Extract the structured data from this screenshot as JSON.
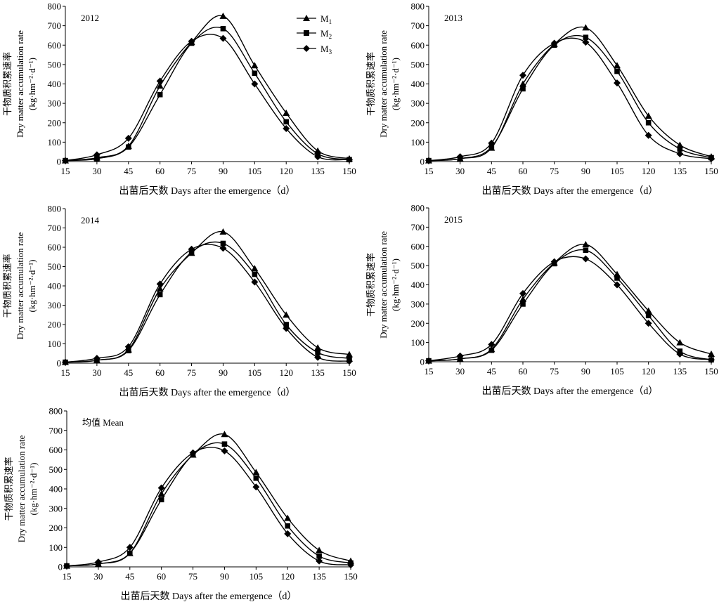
{
  "figure": {
    "xlabel": "出苗后天数 Days after the emergence（d）",
    "ylabel_cn": "干物质积累速率",
    "ylabel_en": "Dry matter accumulation rate",
    "ylabel_unit": "(kg·hm⁻²·d⁻¹)"
  },
  "legend": {
    "entries": [
      {
        "label": "M",
        "sub": "1",
        "marker": "triangle"
      },
      {
        "label": "M",
        "sub": "2",
        "marker": "square"
      },
      {
        "label": "M",
        "sub": "3",
        "marker": "diamond"
      }
    ]
  },
  "chart_data": [
    {
      "type": "line",
      "title": "2012",
      "x": [
        15,
        30,
        45,
        60,
        75,
        90,
        105,
        120,
        135,
        150
      ],
      "xticks": [
        15,
        30,
        45,
        60,
        75,
        90,
        105,
        120,
        135,
        150
      ],
      "ylim": [
        0,
        800
      ],
      "yticks": [
        0,
        100,
        200,
        300,
        400,
        500,
        600,
        700,
        800
      ],
      "series": [
        {
          "name": "M1",
          "marker": "triangle",
          "values": [
            5,
            20,
            80,
            390,
            615,
            750,
            495,
            250,
            55,
            15
          ]
        },
        {
          "name": "M2",
          "marker": "square",
          "values": [
            5,
            15,
            75,
            345,
            610,
            685,
            455,
            205,
            40,
            10
          ]
        },
        {
          "name": "M3",
          "marker": "diamond",
          "values": [
            5,
            35,
            120,
            415,
            620,
            635,
            400,
            170,
            25,
            10
          ]
        }
      ]
    },
    {
      "type": "line",
      "title": "2013",
      "x": [
        15,
        30,
        45,
        60,
        75,
        90,
        105,
        120,
        135,
        150
      ],
      "xticks": [
        15,
        30,
        45,
        60,
        75,
        90,
        105,
        120,
        135,
        150
      ],
      "ylim": [
        0,
        800
      ],
      "yticks": [
        0,
        100,
        200,
        300,
        400,
        500,
        600,
        700,
        800
      ],
      "series": [
        {
          "name": "M1",
          "marker": "triangle",
          "values": [
            5,
            15,
            70,
            400,
            605,
            690,
            495,
            235,
            85,
            25
          ]
        },
        {
          "name": "M2",
          "marker": "square",
          "values": [
            5,
            15,
            75,
            375,
            600,
            640,
            465,
            200,
            65,
            20
          ]
        },
        {
          "name": "M3",
          "marker": "diamond",
          "values": [
            5,
            25,
            95,
            445,
            610,
            615,
            405,
            135,
            40,
            15
          ]
        }
      ]
    },
    {
      "type": "line",
      "title": "2014",
      "x": [
        15,
        30,
        45,
        60,
        75,
        90,
        105,
        120,
        135,
        150
      ],
      "xticks": [
        15,
        30,
        45,
        60,
        75,
        90,
        105,
        120,
        135,
        150
      ],
      "ylim": [
        0,
        800
      ],
      "yticks": [
        0,
        100,
        200,
        300,
        400,
        500,
        600,
        700,
        800
      ],
      "series": [
        {
          "name": "M1",
          "marker": "triangle",
          "values": [
            5,
            15,
            70,
            385,
            570,
            680,
            490,
            250,
            80,
            45
          ]
        },
        {
          "name": "M2",
          "marker": "square",
          "values": [
            5,
            15,
            65,
            355,
            575,
            620,
            460,
            200,
            55,
            25
          ]
        },
        {
          "name": "M3",
          "marker": "diamond",
          "values": [
            5,
            25,
            85,
            410,
            590,
            595,
            420,
            180,
            30,
            10
          ]
        }
      ]
    },
    {
      "type": "line",
      "title": "2015",
      "x": [
        15,
        30,
        45,
        60,
        75,
        90,
        105,
        120,
        135,
        150
      ],
      "xticks": [
        15,
        30,
        45,
        60,
        75,
        90,
        105,
        120,
        135,
        150
      ],
      "ylim": [
        0,
        800
      ],
      "yticks": [
        0,
        100,
        200,
        300,
        400,
        500,
        600,
        700,
        800
      ],
      "series": [
        {
          "name": "M1",
          "marker": "triangle",
          "values": [
            5,
            15,
            65,
            325,
            515,
            610,
            455,
            265,
            100,
            40
          ]
        },
        {
          "name": "M2",
          "marker": "square",
          "values": [
            5,
            15,
            60,
            300,
            510,
            580,
            435,
            240,
            55,
            10
          ]
        },
        {
          "name": "M3",
          "marker": "diamond",
          "values": [
            5,
            30,
            90,
            355,
            520,
            535,
            400,
            200,
            40,
            10
          ]
        }
      ]
    },
    {
      "type": "line",
      "title": "均值 Mean",
      "x": [
        15,
        30,
        45,
        60,
        75,
        90,
        105,
        120,
        135,
        150
      ],
      "xticks": [
        15,
        30,
        45,
        60,
        75,
        90,
        105,
        120,
        135,
        150
      ],
      "ylim": [
        0,
        800
      ],
      "yticks": [
        0,
        100,
        200,
        300,
        400,
        500,
        600,
        700,
        800
      ],
      "series": [
        {
          "name": "M1",
          "marker": "triangle",
          "values": [
            5,
            15,
            70,
            375,
            575,
            680,
            485,
            250,
            85,
            30
          ]
        },
        {
          "name": "M2",
          "marker": "square",
          "values": [
            5,
            15,
            70,
            345,
            575,
            630,
            455,
            210,
            55,
            20
          ]
        },
        {
          "name": "M3",
          "marker": "diamond",
          "values": [
            5,
            25,
            100,
            405,
            585,
            595,
            410,
            170,
            30,
            10
          ]
        }
      ]
    }
  ]
}
